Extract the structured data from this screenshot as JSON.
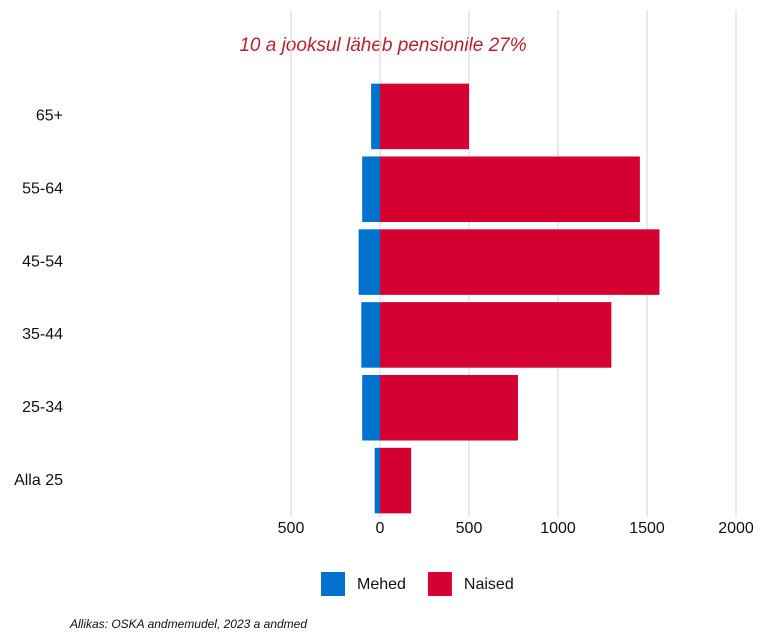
{
  "chart_data": {
    "type": "bar",
    "orientation": "horizontal",
    "title": "10 a jooksul läheb pensionile 27%",
    "note": "Allikas: OSKA andmemudel, 2023 a andmed",
    "categories": [
      "65+",
      "55-64",
      "45-54",
      "35-44",
      "25-34",
      "Alla 25"
    ],
    "series": [
      {
        "name": "Mehed",
        "color": "#0072ce",
        "values": [
          -50,
          -100,
          -120,
          -105,
          -100,
          -30
        ]
      },
      {
        "name": "Naised",
        "color": "#d50032",
        "values": [
          500,
          1460,
          1570,
          1300,
          775,
          175
        ]
      }
    ],
    "xlim": [
      -500,
      2000
    ],
    "xticks": [
      {
        "value": -500,
        "label": "500"
      },
      0,
      500,
      1000,
      1500,
      2000
    ],
    "grid": true,
    "legend": "bottom"
  }
}
